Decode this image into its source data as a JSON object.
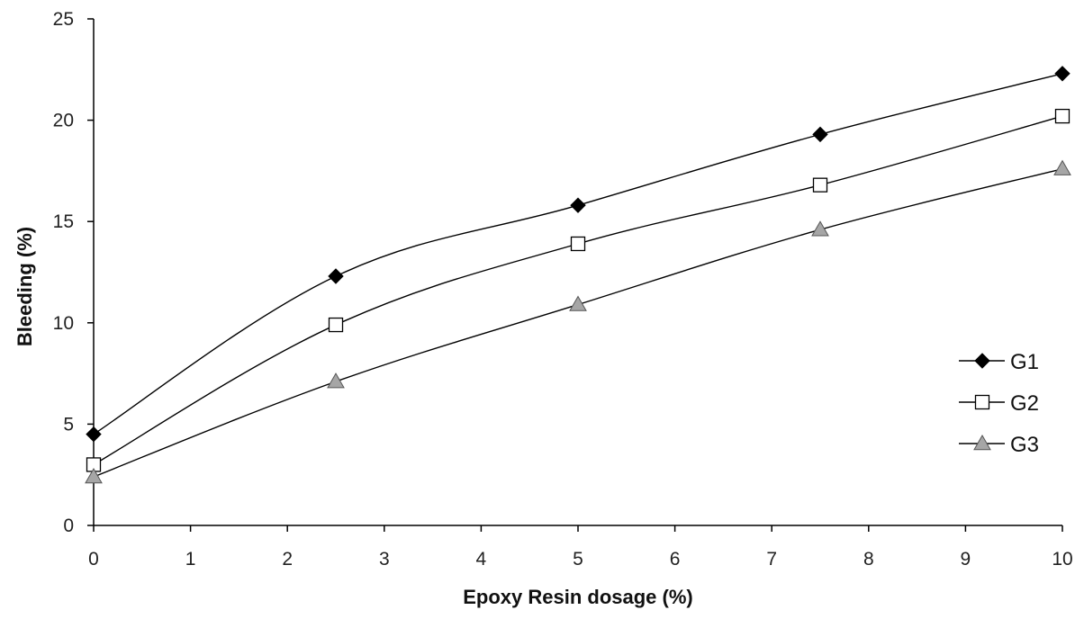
{
  "chart_data": {
    "type": "line",
    "title": "",
    "xlabel": "Epoxy Resin dosage (%)",
    "ylabel": "Bleeding (%)",
    "xlim": [
      0,
      10
    ],
    "ylim": [
      0,
      25
    ],
    "xticks": [
      0,
      1,
      2,
      3,
      4,
      5,
      6,
      7,
      8,
      9,
      10
    ],
    "yticks": [
      0,
      5,
      10,
      15,
      20,
      25
    ],
    "grid": false,
    "legend_position": "right",
    "series": [
      {
        "name": "G1",
        "marker": "diamond",
        "marker_color": "#000000",
        "x": [
          0,
          2.5,
          5,
          7.5,
          10
        ],
        "y": [
          4.5,
          12.3,
          15.8,
          19.3,
          22.3
        ]
      },
      {
        "name": "G2",
        "marker": "square",
        "marker_color": "#ffffff",
        "x": [
          0,
          2.5,
          5,
          7.5,
          10
        ],
        "y": [
          3.0,
          9.9,
          13.9,
          16.8,
          20.2
        ]
      },
      {
        "name": "G3",
        "marker": "triangle",
        "marker_color": "#a6a6a6",
        "x": [
          0,
          2.5,
          5,
          7.5,
          10
        ],
        "y": [
          2.4,
          7.1,
          10.9,
          14.6,
          17.6
        ]
      }
    ]
  }
}
